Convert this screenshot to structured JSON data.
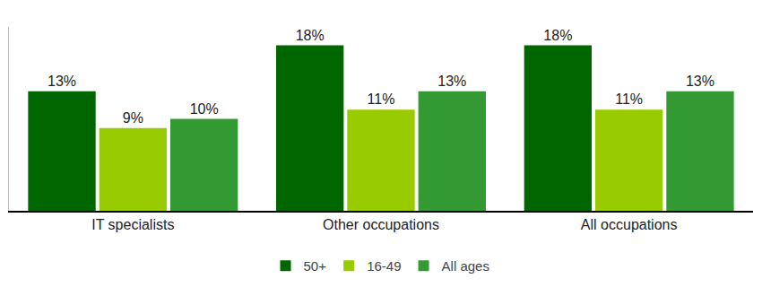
{
  "chart_data": {
    "type": "bar",
    "categories": [
      "IT specialists",
      "Other occupations",
      "All occupations"
    ],
    "series": [
      {
        "name": "50+",
        "color": "#006600",
        "values": [
          13,
          18,
          18
        ],
        "value_labels": [
          "13%",
          "18%",
          "18%"
        ]
      },
      {
        "name": "16-49",
        "color": "#99cc00",
        "values": [
          9,
          11,
          11
        ],
        "value_labels": [
          "9%",
          "11%",
          "11%"
        ]
      },
      {
        "name": "All ages",
        "color": "#339933",
        "values": [
          10,
          13,
          13
        ],
        "value_labels": [
          "10%",
          "13%",
          "13%"
        ]
      }
    ],
    "ylim": [
      0,
      20
    ],
    "grid": false,
    "legend": "bottom",
    "data_labels": true,
    "tick_labels": "x"
  }
}
